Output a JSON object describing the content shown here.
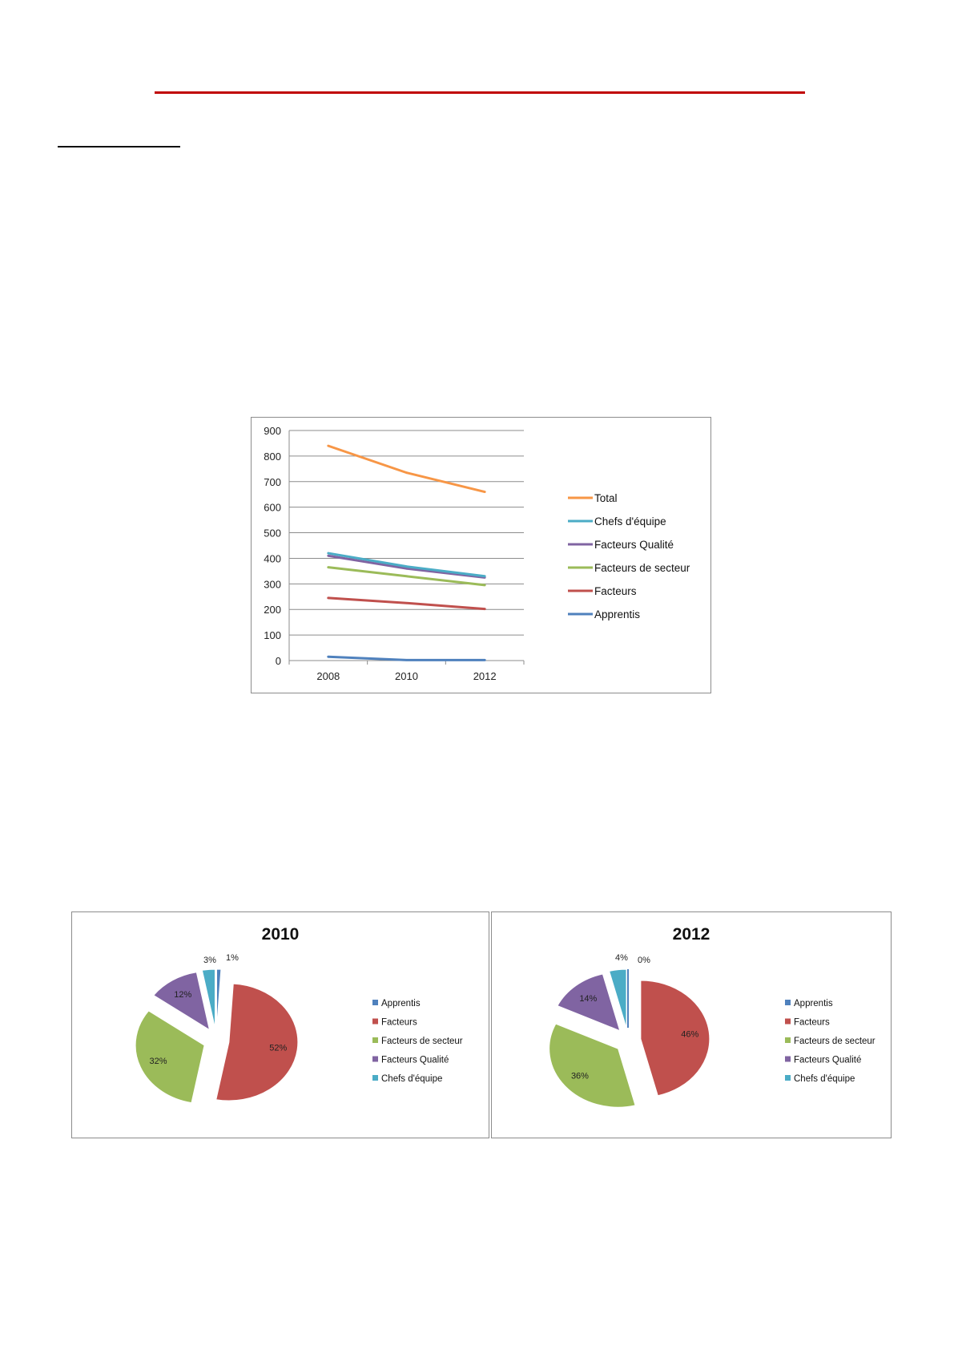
{
  "chart_data": [
    {
      "type": "line",
      "categories": [
        "2008",
        "2010",
        "2012"
      ],
      "ylim": [
        0,
        900
      ],
      "yticks": [
        0,
        100,
        200,
        300,
        400,
        500,
        600,
        700,
        800,
        900
      ],
      "grid": true,
      "legend_position": "right",
      "series": [
        {
          "name": "Total",
          "color": "#f79646",
          "values": [
            840,
            735,
            660
          ]
        },
        {
          "name": "Chefs d'équipe",
          "color": "#4bacc6",
          "values": [
            420,
            368,
            330
          ]
        },
        {
          "name": "Facteurs Qualité",
          "color": "#8064a2",
          "values": [
            410,
            360,
            325
          ]
        },
        {
          "name": "Facteurs de secteur",
          "color": "#9bbb59",
          "values": [
            365,
            330,
            295
          ]
        },
        {
          "name": "Facteurs",
          "color": "#c0504d",
          "values": [
            245,
            225,
            202
          ]
        },
        {
          "name": "Apprentis",
          "color": "#4f81bd",
          "values": [
            15,
            2,
            2
          ]
        }
      ]
    },
    {
      "type": "pie",
      "title": "2010",
      "labels": [
        "Apprentis",
        "Facteurs",
        "Facteurs de secteur",
        "Facteurs Qualité",
        "Chefs d'équipe"
      ],
      "values": [
        1,
        52,
        32,
        12,
        3
      ],
      "data_labels": [
        "1%",
        "52%",
        "32%",
        "12%",
        "3%"
      ],
      "colors": [
        "#4f81bd",
        "#c0504d",
        "#9bbb59",
        "#8064a2",
        "#4bacc6"
      ],
      "exploded": true,
      "legend_position": "right"
    },
    {
      "type": "pie",
      "title": "2012",
      "labels": [
        "Apprentis",
        "Facteurs",
        "Facteurs de secteur",
        "Facteurs Qualité",
        "Chefs d'équipe"
      ],
      "values": [
        0,
        46,
        36,
        14,
        4
      ],
      "data_labels": [
        "0%",
        "46%",
        "36%",
        "14%",
        "4%"
      ],
      "colors": [
        "#4f81bd",
        "#c0504d",
        "#9bbb59",
        "#8064a2",
        "#4bacc6"
      ],
      "exploded": true,
      "legend_position": "right"
    }
  ]
}
